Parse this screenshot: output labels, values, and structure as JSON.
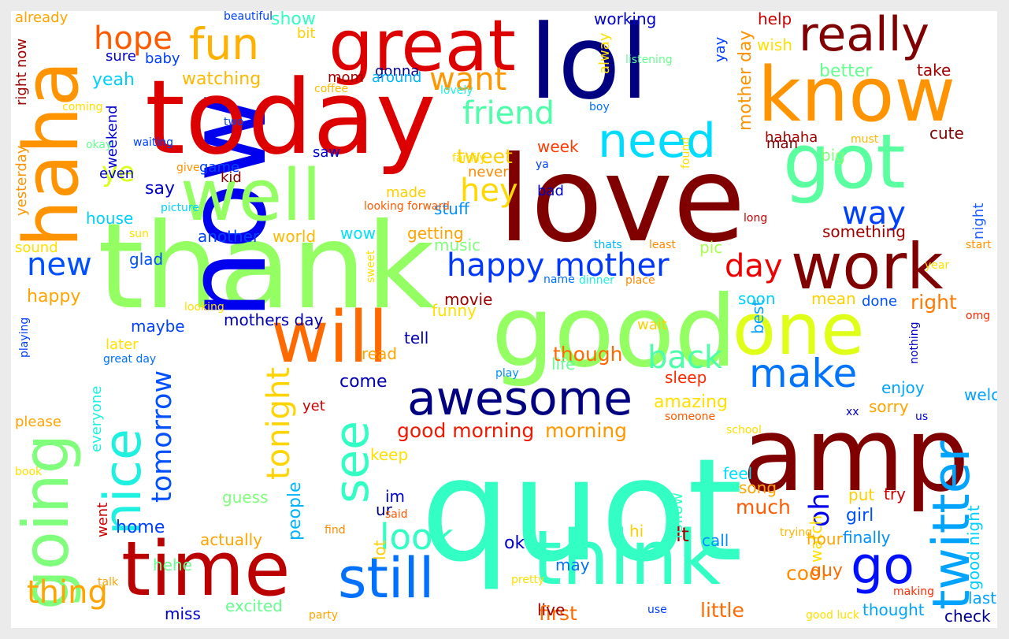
{
  "words": [
    {
      "text": "quot",
      "color": "#33ffc4"
    },
    {
      "text": "love",
      "color": "#800000"
    },
    {
      "text": "thank",
      "color": "#94ff63"
    },
    {
      "text": "now",
      "color": "#0000ee"
    },
    {
      "text": "today",
      "color": "#dd0000"
    },
    {
      "text": "lol",
      "color": "#000080"
    },
    {
      "text": "amp",
      "color": "#800000"
    },
    {
      "text": "good",
      "color": "#94ff63"
    },
    {
      "text": "haha",
      "color": "#ff9400"
    },
    {
      "text": "know",
      "color": "#ff9400"
    },
    {
      "text": "well",
      "color": "#94ff63"
    },
    {
      "text": "think",
      "color": "#33ffc4"
    },
    {
      "text": "time",
      "color": "#bb0000"
    },
    {
      "text": "got",
      "color": "#5affa0"
    },
    {
      "text": "will",
      "color": "#ff6a00"
    },
    {
      "text": "one",
      "color": "#dfff18"
    },
    {
      "text": "work",
      "color": "#800000"
    },
    {
      "text": "great",
      "color": "#dd0000"
    },
    {
      "text": "going",
      "color": "#80ff7d"
    },
    {
      "text": "really",
      "color": "#800000"
    },
    {
      "text": "awesome",
      "color": "#000080"
    },
    {
      "text": "still",
      "color": "#0070ff"
    },
    {
      "text": "twitter",
      "color": "#00a4ff"
    },
    {
      "text": "fun",
      "color": "#ffb000"
    },
    {
      "text": "see",
      "color": "#33ffc4"
    },
    {
      "text": "nice",
      "color": "#20f0e0"
    },
    {
      "text": "need",
      "color": "#00dcff"
    },
    {
      "text": "make",
      "color": "#0074ff"
    },
    {
      "text": "go",
      "color": "#0010ff"
    },
    {
      "text": "happy mother",
      "color": "#0038ff"
    },
    {
      "text": "back",
      "color": "#4dffa8"
    },
    {
      "text": "look",
      "color": "#33ffc4"
    },
    {
      "text": "friend",
      "color": "#4dffa8"
    },
    {
      "text": "tonight",
      "color": "#ffd400"
    },
    {
      "text": "thing",
      "color": "#ffa400"
    },
    {
      "text": "tomorrow",
      "color": "#0050ff"
    },
    {
      "text": "want",
      "color": "#ff9800"
    },
    {
      "text": "day",
      "color": "#ee0000"
    },
    {
      "text": "hope",
      "color": "#ff5a00"
    },
    {
      "text": "new",
      "color": "#0050ff"
    },
    {
      "text": "way",
      "color": "#0040ff"
    },
    {
      "text": "hey",
      "color": "#ffd800"
    },
    {
      "text": "oh",
      "color": "#0000ee"
    },
    {
      "text": "ye",
      "color": "#d8ff1f"
    },
    {
      "text": "good morning",
      "color": "#ee1a00"
    },
    {
      "text": "morning",
      "color": "#ff9800"
    },
    {
      "text": "mother day",
      "color": "#ff9400"
    },
    {
      "text": "though",
      "color": "#ff6a00"
    },
    {
      "text": "right",
      "color": "#ff7a00"
    },
    {
      "text": "much",
      "color": "#ff5a00"
    },
    {
      "text": "little",
      "color": "#ff6a00"
    },
    {
      "text": "first",
      "color": "#ff6a00"
    },
    {
      "text": "cool",
      "color": "#ff8a00"
    },
    {
      "text": "people",
      "color": "#00b4ff"
    },
    {
      "text": "watching",
      "color": "#ffb800"
    },
    {
      "text": "yeah",
      "color": "#00d0ff"
    },
    {
      "text": "hahaha",
      "color": "#a00000"
    },
    {
      "text": "night",
      "color": "#2060ff"
    },
    {
      "text": "girl",
      "color": "#0050ff"
    },
    {
      "text": "better",
      "color": "#66ff90"
    },
    {
      "text": "say",
      "color": "#0000cc"
    },
    {
      "text": "tweet",
      "color": "#ffd000"
    },
    {
      "text": "week",
      "color": "#ff3a00"
    },
    {
      "text": "come",
      "color": "#0000b0"
    },
    {
      "text": "amazing",
      "color": "#ffe000"
    },
    {
      "text": "best",
      "color": "#00a0ff"
    },
    {
      "text": "show",
      "color": "#33ffc4"
    },
    {
      "text": "home",
      "color": "#0040ff"
    },
    {
      "text": "happy",
      "color": "#ffa400"
    },
    {
      "text": "finally",
      "color": "#0090ff"
    },
    {
      "text": "thought",
      "color": "#00a4ff"
    },
    {
      "text": "guy",
      "color": "#ff6a00"
    },
    {
      "text": "check",
      "color": "#000090"
    },
    {
      "text": "ok",
      "color": "#0000cc"
    },
    {
      "text": "lt",
      "color": "#a00000"
    },
    {
      "text": "actually",
      "color": "#ffa400"
    },
    {
      "text": "excited",
      "color": "#66ff90"
    },
    {
      "text": "stuff",
      "color": "#0090ff"
    },
    {
      "text": "working",
      "color": "#0000cc"
    },
    {
      "text": "hehe",
      "color": "#66ff90"
    },
    {
      "text": "miss",
      "color": "#0000cc"
    },
    {
      "text": "sleep",
      "color": "#ff2a00"
    },
    {
      "text": "getting",
      "color": "#ffa400"
    },
    {
      "text": "something",
      "color": "#a00000"
    },
    {
      "text": "mothers day",
      "color": "#0000b0"
    },
    {
      "text": "another",
      "color": "#0040ff"
    },
    {
      "text": "world",
      "color": "#ffb800"
    },
    {
      "text": "house",
      "color": "#00d0ff"
    },
    {
      "text": "music",
      "color": "#80ff7d"
    },
    {
      "text": "pic",
      "color": "#a8ff50"
    },
    {
      "text": "soon",
      "color": "#00d0ff"
    },
    {
      "text": "done",
      "color": "#0050ff"
    },
    {
      "text": "enjoy",
      "color": "#00a4ff"
    },
    {
      "text": "sorry",
      "color": "#ffa400"
    },
    {
      "text": "feel",
      "color": "#00e0ff"
    },
    {
      "text": "song",
      "color": "#ffa400"
    },
    {
      "text": "put",
      "color": "#ffd000"
    },
    {
      "text": "try",
      "color": "#cc0000"
    },
    {
      "text": "cute",
      "color": "#800000"
    },
    {
      "text": "help",
      "color": "#cc0000"
    },
    {
      "text": "wish",
      "color": "#ffe000"
    },
    {
      "text": "take",
      "color": "#a00000"
    },
    {
      "text": "man",
      "color": "#800000"
    },
    {
      "text": "big",
      "color": "#80ff7d"
    },
    {
      "text": "mean",
      "color": "#ffd000"
    },
    {
      "text": "welcome",
      "color": "#00a0ff"
    },
    {
      "text": "last night",
      "color": "#00a4ff"
    },
    {
      "text": "good night",
      "color": "#00d0ff"
    },
    {
      "text": "watch",
      "color": "#ffe000"
    },
    {
      "text": "hour",
      "color": "#ffa400"
    },
    {
      "text": "call",
      "color": "#0090ff"
    },
    {
      "text": "may",
      "color": "#0070ff"
    },
    {
      "text": "live",
      "color": "#a00000"
    },
    {
      "text": "follow",
      "color": "#33ffc4"
    },
    {
      "text": "hi",
      "color": "#ffd000"
    },
    {
      "text": "lot",
      "color": "#ffd000"
    },
    {
      "text": "im",
      "color": "#0000cc"
    },
    {
      "text": "ur",
      "color": "#000080"
    },
    {
      "text": "keep",
      "color": "#ffe000"
    },
    {
      "text": "yet",
      "color": "#cc0000"
    },
    {
      "text": "tell",
      "color": "#0000b0"
    },
    {
      "text": "read",
      "color": "#ffa400"
    },
    {
      "text": "movie",
      "color": "#a00000"
    },
    {
      "text": "funny",
      "color": "#ffe000"
    },
    {
      "text": "life",
      "color": "#66ff90"
    },
    {
      "text": "wow",
      "color": "#00e0ff"
    },
    {
      "text": "guess",
      "color": "#80ff7d"
    },
    {
      "text": "went",
      "color": "#cc0000"
    },
    {
      "text": "everyone",
      "color": "#20f0e0"
    },
    {
      "text": "please",
      "color": "#ffa400"
    },
    {
      "text": "maybe",
      "color": "#0040ff"
    },
    {
      "text": "glad",
      "color": "#0050ff"
    },
    {
      "text": "later",
      "color": "#ffe000"
    },
    {
      "text": "sound",
      "color": "#ffe000"
    },
    {
      "text": "yesterday",
      "color": "#ff9400"
    },
    {
      "text": "weekend",
      "color": "#0000cc"
    },
    {
      "text": "right now",
      "color": "#a00000"
    },
    {
      "text": "already",
      "color": "#ffa400"
    },
    {
      "text": "sure",
      "color": "#0000cc"
    },
    {
      "text": "baby",
      "color": "#0040ff"
    },
    {
      "text": "bit",
      "color": "#ffd000"
    },
    {
      "text": "mom",
      "color": "#a00000"
    },
    {
      "text": "yay",
      "color": "#0040ff"
    },
    {
      "text": "kid",
      "color": "#800000"
    },
    {
      "text": "game",
      "color": "#0040ff"
    },
    {
      "text": "even",
      "color": "#0000cc"
    },
    {
      "text": "saw",
      "color": "#0000cc"
    },
    {
      "text": "made",
      "color": "#ffd000"
    },
    {
      "text": "never",
      "color": "#ff8a00"
    },
    {
      "text": "bad",
      "color": "#0000cc"
    },
    {
      "text": "wait",
      "color": "#ffd000"
    },
    {
      "text": "gonna",
      "color": "#000090"
    },
    {
      "text": "alway",
      "color": "#ffe000"
    },
    {
      "text": "around",
      "color": "#00b4ff"
    },
    {
      "text": "coming",
      "color": "#ffe000"
    },
    {
      "text": "beautiful",
      "color": "#0040ff"
    },
    {
      "text": "coffee",
      "color": "#ffb800"
    },
    {
      "text": "lovely",
      "color": "#20f0e0"
    },
    {
      "text": "boy",
      "color": "#0070ff"
    },
    {
      "text": "two",
      "color": "#0040ff"
    },
    {
      "text": "okay",
      "color": "#66ff90"
    },
    {
      "text": "waiting",
      "color": "#0040ff"
    },
    {
      "text": "give",
      "color": "#ff9400"
    },
    {
      "text": "family",
      "color": "#ffe000"
    },
    {
      "text": "ya",
      "color": "#0040ff"
    },
    {
      "text": "listening",
      "color": "#66ff90"
    },
    {
      "text": "must",
      "color": "#ffb800"
    },
    {
      "text": "found",
      "color": "#ffe000"
    },
    {
      "text": "long",
      "color": "#cc0000"
    },
    {
      "text": "start",
      "color": "#ff9400"
    },
    {
      "text": "least",
      "color": "#ff8a00"
    },
    {
      "text": "thats",
      "color": "#00b4ff"
    },
    {
      "text": "sun",
      "color": "#ffe000"
    },
    {
      "text": "picture",
      "color": "#00d0ff"
    },
    {
      "text": "looking forward",
      "color": "#ff5a00"
    },
    {
      "text": "sweet",
      "color": "#ffe000"
    },
    {
      "text": "name",
      "color": "#0070ff"
    },
    {
      "text": "dinner",
      "color": "#20f0e0"
    },
    {
      "text": "place",
      "color": "#ff8a00"
    },
    {
      "text": "year",
      "color": "#ffe000"
    },
    {
      "text": "omg",
      "color": "#ff2a00"
    },
    {
      "text": "looking",
      "color": "#ffe000"
    },
    {
      "text": "great day",
      "color": "#0070ff"
    },
    {
      "text": "playing",
      "color": "#0040ff"
    },
    {
      "text": "play",
      "color": "#0090ff"
    },
    {
      "text": "nothing",
      "color": "#0000cc"
    },
    {
      "text": "someone",
      "color": "#ff5a00"
    },
    {
      "text": "xx",
      "color": "#0000cc"
    },
    {
      "text": "us",
      "color": "#0000cc"
    },
    {
      "text": "school",
      "color": "#ffe000"
    },
    {
      "text": "find",
      "color": "#ff8a00"
    },
    {
      "text": "said",
      "color": "#ff5a00"
    },
    {
      "text": "book",
      "color": "#ffe000"
    },
    {
      "text": "talk",
      "color": "#ffa400"
    },
    {
      "text": "pretty",
      "color": "#ffe000"
    },
    {
      "text": "party",
      "color": "#ffa400"
    },
    {
      "text": "use",
      "color": "#0040ff"
    },
    {
      "text": "trying",
      "color": "#ffb800"
    },
    {
      "text": "making",
      "color": "#ff2a00"
    },
    {
      "text": "good luck",
      "color": "#ffe000"
    }
  ]
}
